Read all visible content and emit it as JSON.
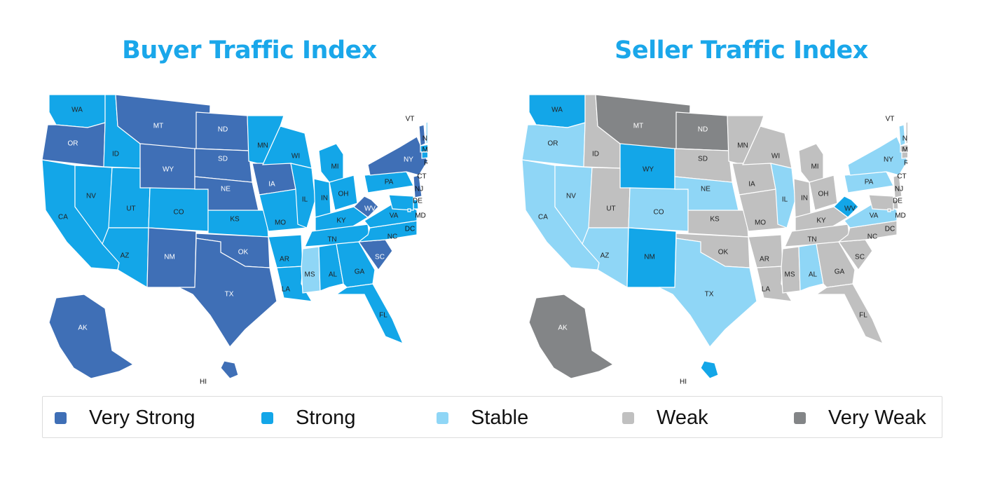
{
  "colors": {
    "very_strong": "#3f6fb6",
    "strong": "#13a6e8",
    "stable": "#8fd6f6",
    "weak": "#c0c0c0",
    "very_weak": "#838587",
    "title": "#1aa7ea"
  },
  "legend": [
    {
      "key": "very_strong",
      "label": "Very Strong",
      "color": "#3f6fb6"
    },
    {
      "key": "strong",
      "label": "Strong",
      "color": "#13a6e8"
    },
    {
      "key": "stable",
      "label": "Stable",
      "color": "#8fd6f6"
    },
    {
      "key": "weak",
      "label": "Weak",
      "color": "#c0c0c0"
    },
    {
      "key": "very_weak",
      "label": "Very Weak",
      "color": "#838587"
    }
  ],
  "maps": [
    {
      "id": "buyer",
      "title": "Buyer Traffic Index",
      "states": {
        "WA": "strong",
        "OR": "very_strong",
        "CA": "strong",
        "ID": "strong",
        "NV": "strong",
        "MT": "very_strong",
        "WY": "very_strong",
        "UT": "strong",
        "AZ": "strong",
        "CO": "strong",
        "NM": "very_strong",
        "ND": "very_strong",
        "SD": "very_strong",
        "NE": "very_strong",
        "KS": "strong",
        "OK": "very_strong",
        "TX": "very_strong",
        "MN": "strong",
        "IA": "very_strong",
        "MO": "strong",
        "AR": "strong",
        "LA": "strong",
        "WI": "strong",
        "IL": "strong",
        "MI": "strong",
        "IN": "strong",
        "OH": "strong",
        "KY": "strong",
        "TN": "strong",
        "MS": "stable",
        "AL": "strong",
        "GA": "strong",
        "FL": "strong",
        "SC": "very_strong",
        "NC": "strong",
        "VA": "strong",
        "WV": "very_strong",
        "PA": "strong",
        "NY": "very_strong",
        "VT": "very_strong",
        "NH": "stable",
        "ME": "very_strong",
        "MA": "strong",
        "RI": "strong",
        "CT": "strong",
        "NJ": "very_strong",
        "DE": "strong",
        "MD": "strong",
        "DC": "strong",
        "AK": "very_strong",
        "HI": "very_strong"
      }
    },
    {
      "id": "seller",
      "title": "Seller Traffic Index",
      "states": {
        "WA": "strong",
        "OR": "stable",
        "CA": "stable",
        "ID": "weak",
        "NV": "stable",
        "MT": "very_weak",
        "WY": "strong",
        "UT": "weak",
        "AZ": "stable",
        "CO": "stable",
        "NM": "strong",
        "ND": "very_weak",
        "SD": "weak",
        "NE": "stable",
        "KS": "weak",
        "OK": "weak",
        "TX": "stable",
        "MN": "weak",
        "IA": "weak",
        "MO": "weak",
        "AR": "weak",
        "LA": "weak",
        "WI": "weak",
        "IL": "stable",
        "MI": "weak",
        "IN": "weak",
        "OH": "weak",
        "KY": "weak",
        "TN": "weak",
        "MS": "weak",
        "AL": "stable",
        "GA": "weak",
        "FL": "weak",
        "SC": "weak",
        "NC": "weak",
        "VA": "stable",
        "WV": "strong",
        "PA": "stable",
        "NY": "stable",
        "VT": "stable",
        "NH": "weak",
        "ME": "strong",
        "MA": "weak",
        "RI": "weak",
        "CT": "weak",
        "NJ": "weak",
        "DE": "weak",
        "MD": "weak",
        "DC": "weak",
        "AK": "very_weak",
        "HI": "strong"
      }
    }
  ]
}
